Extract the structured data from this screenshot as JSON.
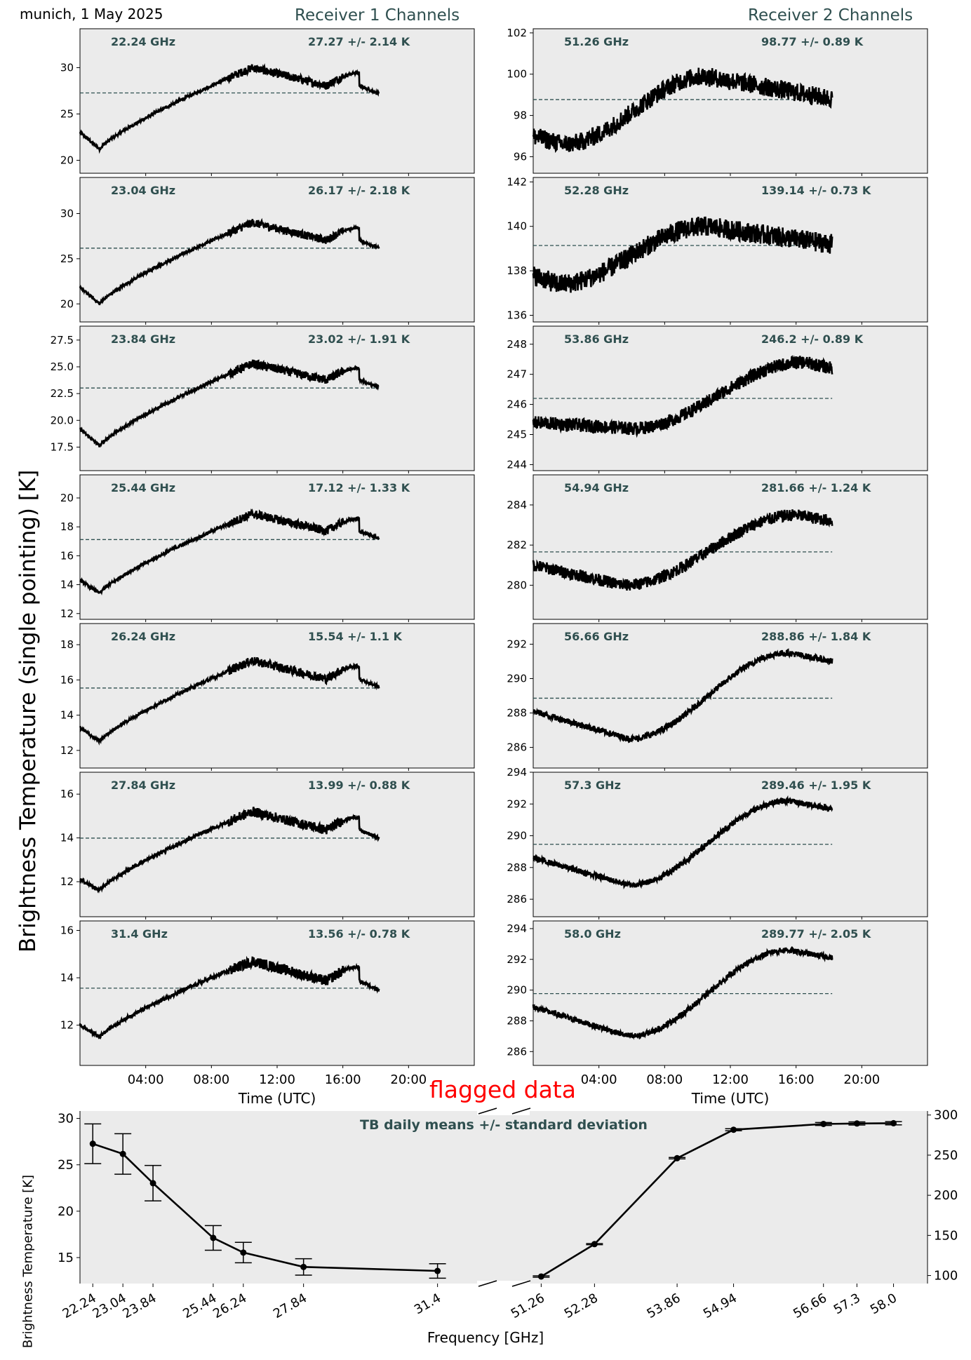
{
  "header": {
    "location_date": "munich, 1 May 2025",
    "receiver1_title": "Receiver 1 Channels",
    "receiver2_title": "Receiver 2 Channels"
  },
  "labels": {
    "ylabel_main": "Brightness Temperature (single pointing) [K]",
    "xlabel_time": "Time (UTC)",
    "flagged": "flagged data",
    "bottom_title": "TB daily means +/- standard deviation",
    "bottom_ylabel": "Brightness Temperature [K]",
    "bottom_xlabel": "Frequency [GHz]"
  },
  "colors": {
    "panel_bg": "#ebebeb",
    "annotation": "#2f4f4f",
    "series": "#000000",
    "flag_text": "#ff0000"
  },
  "chart_data": [
    {
      "type": "line",
      "group": "receiver1",
      "x_ticks": [
        "04:00",
        "08:00",
        "12:00",
        "16:00",
        "20:00"
      ],
      "xlabel": "Time (UTC)",
      "x_range_hours": [
        0,
        24
      ],
      "data_hours_range": [
        0,
        18.2
      ],
      "grid": false,
      "channels": [
        {
          "freq_label": "22.24 GHz",
          "stat_label": "27.27 +/- 2.14 K",
          "mean": 27.27,
          "ylim": [
            18.6,
            34.2
          ],
          "yticks": [
            "20",
            "25",
            "30"
          ],
          "ytick_values": [
            20,
            25,
            30
          ],
          "start": 23.0,
          "min": 21.2,
          "peak": 30.0,
          "end": 27.2,
          "noise": 0.9
        },
        {
          "freq_label": "23.04 GHz",
          "stat_label": "26.17 +/- 2.18 K",
          "mean": 26.17,
          "ylim": [
            18.0,
            34.0
          ],
          "yticks": [
            "20",
            "25",
            "30"
          ],
          "ytick_values": [
            20,
            25,
            30
          ],
          "start": 21.8,
          "min": 20.0,
          "peak": 29.0,
          "end": 26.2,
          "noise": 0.9
        },
        {
          "freq_label": "23.84 GHz",
          "stat_label": "23.02 +/- 1.91 K",
          "mean": 23.02,
          "ylim": [
            15.3,
            28.8
          ],
          "yticks": [
            "17.5",
            "20.0",
            "22.5",
            "25.0",
            "27.5"
          ],
          "ytick_values": [
            17.5,
            20,
            22.5,
            25,
            27.5
          ],
          "start": 19.2,
          "min": 17.6,
          "peak": 25.3,
          "end": 23.1,
          "noise": 0.8
        },
        {
          "freq_label": "25.44 GHz",
          "stat_label": "17.12 +/- 1.33 K",
          "mean": 17.12,
          "ylim": [
            11.6,
            21.6
          ],
          "yticks": [
            "12",
            "14",
            "16",
            "18",
            "20"
          ],
          "ytick_values": [
            12,
            14,
            16,
            18,
            20
          ],
          "start": 14.3,
          "min": 13.4,
          "peak": 18.9,
          "end": 17.2,
          "noise": 0.6
        },
        {
          "freq_label": "26.24 GHz",
          "stat_label": "15.54 +/- 1.1 K",
          "mean": 15.54,
          "ylim": [
            11.0,
            19.2
          ],
          "yticks": [
            "12",
            "14",
            "16",
            "18"
          ],
          "ytick_values": [
            12,
            14,
            16,
            18
          ],
          "start": 13.3,
          "min": 12.5,
          "peak": 17.1,
          "end": 15.6,
          "noise": 0.5
        },
        {
          "freq_label": "27.84 GHz",
          "stat_label": "13.99 +/- 0.88 K",
          "mean": 13.99,
          "ylim": [
            10.4,
            17.0
          ],
          "yticks": [
            "12",
            "14",
            "16"
          ],
          "ytick_values": [
            12,
            14,
            16
          ],
          "start": 12.1,
          "min": 11.6,
          "peak": 15.2,
          "end": 14.0,
          "noise": 0.45
        },
        {
          "freq_label": "31.4 GHz",
          "stat_label": "13.56 +/- 0.78 K",
          "mean": 13.56,
          "ylim": [
            10.3,
            16.4
          ],
          "yticks": [
            "12",
            "14",
            "16"
          ],
          "ytick_values": [
            12,
            14,
            16
          ],
          "start": 12.0,
          "min": 11.5,
          "peak": 14.7,
          "end": 13.5,
          "noise": 0.45
        }
      ]
    },
    {
      "type": "line",
      "group": "receiver2",
      "x_ticks": [
        "04:00",
        "08:00",
        "12:00",
        "16:00",
        "20:00"
      ],
      "xlabel": "Time (UTC)",
      "x_range_hours": [
        0,
        24
      ],
      "data_hours_range": [
        0,
        18.2
      ],
      "grid": false,
      "channels": [
        {
          "freq_label": "51.26 GHz",
          "stat_label": "98.77 +/- 0.89 K",
          "mean": 98.77,
          "ylim": [
            95.2,
            102.2
          ],
          "yticks": [
            "96",
            "98",
            "100",
            "102"
          ],
          "ytick_values": [
            96,
            98,
            100,
            102
          ],
          "start": 97.0,
          "dip": 96.6,
          "dip_h": 1.8,
          "peak": 99.9,
          "peak_h": 10.5,
          "end": 98.8,
          "noise": 0.45
        },
        {
          "freq_label": "52.28 GHz",
          "stat_label": "139.14 +/- 0.73 K",
          "mean": 139.14,
          "ylim": [
            135.7,
            142.2
          ],
          "yticks": [
            "136",
            "138",
            "140",
            "142"
          ],
          "ytick_values": [
            136,
            138,
            140,
            142
          ],
          "start": 137.8,
          "dip": 137.4,
          "dip_h": 1.5,
          "peak": 140.0,
          "peak_h": 10.5,
          "end": 139.2,
          "noise": 0.45
        },
        {
          "freq_label": "53.86 GHz",
          "stat_label": "246.2 +/- 0.89 K",
          "mean": 246.2,
          "ylim": [
            243.8,
            248.6
          ],
          "yticks": [
            "244",
            "245",
            "246",
            "247",
            "248"
          ],
          "ytick_values": [
            244,
            245,
            246,
            247,
            248
          ],
          "start": 245.4,
          "dip": 245.2,
          "dip_h": 6.0,
          "peak": 247.4,
          "peak_h": 16.5,
          "end": 247.2,
          "noise": 0.22
        },
        {
          "freq_label": "54.94 GHz",
          "stat_label": "281.66 +/- 1.24 K",
          "mean": 281.66,
          "ylim": [
            278.3,
            285.5
          ],
          "yticks": [
            "280",
            "282",
            "284"
          ],
          "ytick_values": [
            280,
            282,
            284
          ],
          "start": 281.0,
          "dip": 280.0,
          "dip_h": 5.5,
          "peak": 283.5,
          "peak_h": 16.0,
          "end": 283.2,
          "noise": 0.3
        },
        {
          "freq_label": "56.66 GHz",
          "stat_label": "288.86 +/- 1.84 K",
          "mean": 288.86,
          "ylim": [
            284.8,
            293.2
          ],
          "yticks": [
            "286",
            "288",
            "290",
            "292"
          ],
          "ytick_values": [
            286,
            288,
            290,
            292
          ],
          "start": 288.1,
          "dip": 286.5,
          "dip_h": 5.8,
          "peak": 291.5,
          "peak_h": 15.5,
          "end": 291.0,
          "noise": 0.18
        },
        {
          "freq_label": "57.3 GHz",
          "stat_label": "289.46 +/- 1.95 K",
          "mean": 289.46,
          "ylim": [
            284.9,
            294.0
          ],
          "yticks": [
            "286",
            "288",
            "290",
            "292",
            "294"
          ],
          "ytick_values": [
            286,
            288,
            290,
            292,
            294
          ],
          "start": 288.6,
          "dip": 286.9,
          "dip_h": 5.8,
          "peak": 292.2,
          "peak_h": 15.5,
          "end": 291.7,
          "noise": 0.18
        },
        {
          "freq_label": "58.0 GHz",
          "stat_label": "289.77 +/- 2.05 K",
          "mean": 289.77,
          "ylim": [
            285.1,
            294.5
          ],
          "yticks": [
            "286",
            "288",
            "290",
            "292",
            "294"
          ],
          "ytick_values": [
            286,
            288,
            290,
            292,
            294
          ],
          "start": 288.9,
          "dip": 287.0,
          "dip_h": 5.8,
          "peak": 292.6,
          "peak_h": 15.5,
          "end": 292.1,
          "noise": 0.18
        }
      ]
    },
    {
      "type": "line",
      "group": "daily_means",
      "title": "TB daily means +/- standard deviation",
      "xlabel": "Frequency [GHz]",
      "ylabel": "Brightness Temperature [K]",
      "left": {
        "x": [
          22.24,
          23.04,
          23.84,
          25.44,
          26.24,
          27.84,
          31.4
        ],
        "x_tick_labels": [
          "22.24",
          "23.04",
          "23.84",
          "25.44",
          "26.24",
          "27.84",
          "31.4"
        ],
        "y": [
          27.27,
          26.17,
          23.02,
          17.12,
          15.54,
          13.99,
          13.56
        ],
        "err": [
          2.14,
          2.18,
          1.91,
          1.33,
          1.1,
          0.88,
          0.78
        ],
        "xlim": [
          21.9,
          32.6
        ],
        "ylim": [
          12.2,
          30.8
        ],
        "yticks": [
          "15",
          "20",
          "25",
          "30"
        ],
        "ytick_values": [
          15,
          20,
          25,
          30
        ]
      },
      "right": {
        "x": [
          51.26,
          52.28,
          53.86,
          54.94,
          56.66,
          57.3,
          58.0
        ],
        "x_tick_labels": [
          "51.26",
          "52.28",
          "53.86",
          "54.94",
          "56.66",
          "57.3",
          "58.0"
        ],
        "y": [
          98.77,
          139.14,
          246.2,
          281.66,
          288.86,
          289.46,
          289.77
        ],
        "err": [
          0.89,
          0.73,
          0.89,
          1.24,
          1.84,
          1.95,
          2.05
        ],
        "xlim": [
          51.0,
          58.65
        ],
        "ylim": [
          90,
          305
        ],
        "yticks": [
          "100",
          "150",
          "200",
          "250",
          "300"
        ],
        "ytick_values": [
          100,
          150,
          200,
          250,
          300
        ]
      }
    }
  ]
}
